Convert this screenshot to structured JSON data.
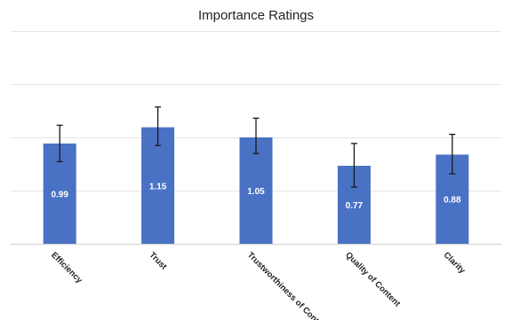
{
  "chart_data": {
    "type": "bar",
    "title": "Importance Ratings",
    "xlabel": "",
    "ylabel": "",
    "categories": [
      "Efficiency",
      "Trust",
      "Trustworthiness of Content",
      "Quality of Content",
      "Clarity"
    ],
    "values": [
      0.99,
      1.15,
      1.05,
      0.77,
      0.88
    ],
    "error_low": [
      0.81,
      0.97,
      0.89,
      0.56,
      0.69
    ],
    "error_high": [
      1.17,
      1.35,
      1.24,
      0.99,
      1.08
    ],
    "ylim": [
      0,
      2.1
    ],
    "gridlines": [
      0,
      0.525,
      1.05,
      1.575,
      2.1
    ],
    "grid": true,
    "legend": "none",
    "bar_color": "#4a72c4",
    "label_color": "#ffffff"
  }
}
